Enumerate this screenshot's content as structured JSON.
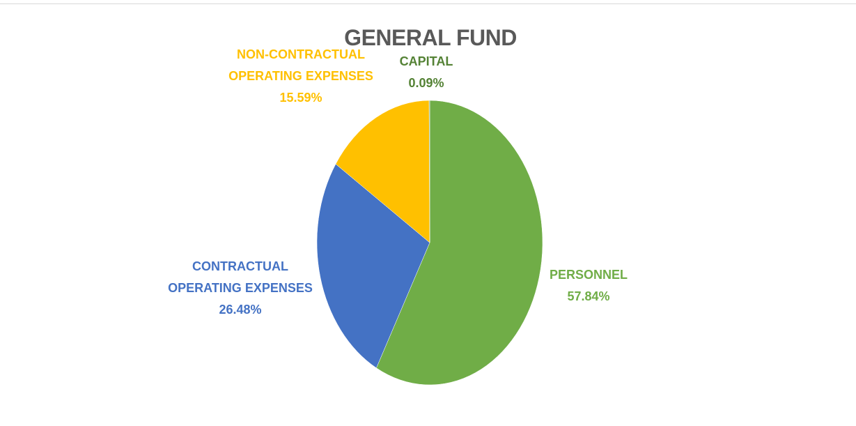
{
  "chart_data": {
    "type": "pie",
    "title": "GENERAL FUND",
    "categories": [
      "PERSONNEL",
      "CONTRACTUAL OPERATING EXPENSES",
      "NON-CONTRACTUAL OPERATING EXPENSES",
      "CAPITAL"
    ],
    "values": [
      57.84,
      26.48,
      15.59,
      0.09
    ],
    "value_labels": [
      "57.84%",
      "26.48%",
      "15.59%",
      "0.09%"
    ],
    "colors": [
      "#70ad47",
      "#4472c4",
      "#ffc000",
      "#548235"
    ]
  }
}
